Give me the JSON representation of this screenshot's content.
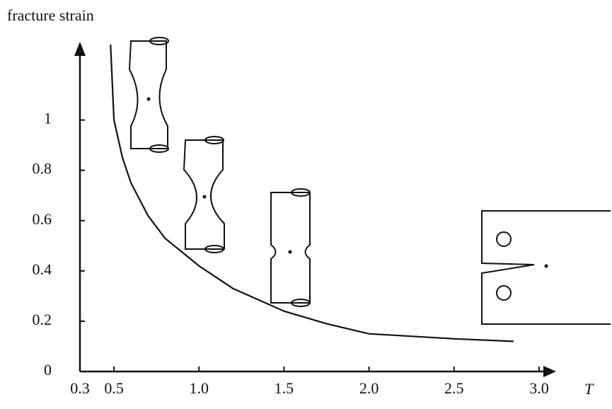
{
  "chart_data": {
    "type": "line",
    "title": "fracture strain",
    "x_label": "T",
    "x": [
      0.48,
      0.5,
      0.55,
      0.6,
      0.7,
      0.8,
      1.0,
      1.2,
      1.5,
      1.75,
      2.0,
      2.5,
      2.85
    ],
    "values": [
      1.3,
      1.0,
      0.85,
      0.75,
      0.62,
      0.53,
      0.42,
      0.33,
      0.24,
      0.19,
      0.15,
      0.13,
      0.12
    ],
    "color": "#111111",
    "xlim": [
      0.3,
      3.1
    ],
    "ylim": [
      0,
      1.3
    ],
    "xticks": [
      0.3,
      0.5,
      {
        "value": 1,
        "label": "1.0"
      },
      1.5,
      {
        "value": 2,
        "label": "2.0"
      },
      2.5,
      {
        "value": 3,
        "label": "3.0"
      }
    ],
    "yticks": [
      0,
      0.2,
      0.4,
      0.6,
      0.8,
      1
    ]
  }
}
